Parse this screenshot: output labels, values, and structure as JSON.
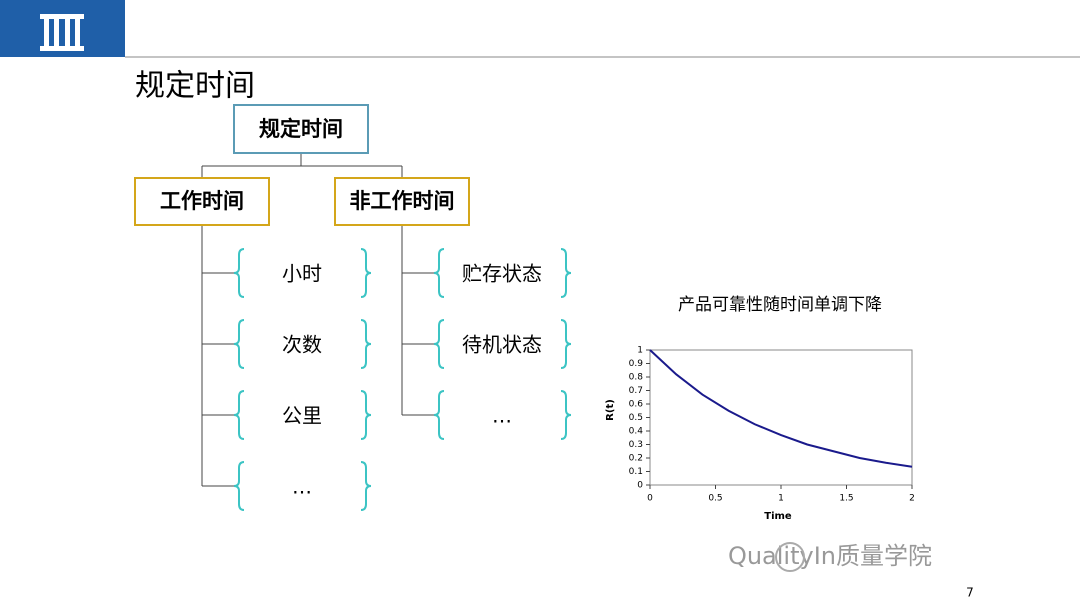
{
  "slide_title": "规定时间",
  "tree": {
    "root": "规定时间",
    "branches": [
      {
        "label": "工作时间",
        "leaves": [
          "小时",
          "次数",
          "公里",
          "…"
        ]
      },
      {
        "label": "非工作时间",
        "leaves": [
          "贮存状态",
          "待机状态",
          "…"
        ]
      }
    ]
  },
  "chart_data": {
    "type": "line",
    "title": "产品可靠性随时间单调下降",
    "x_label": "Time",
    "y_label": "R(t)",
    "x": [
      0,
      0.2,
      0.4,
      0.6,
      0.8,
      1,
      1.2,
      1.4,
      1.6,
      1.8,
      2
    ],
    "values": [
      1,
      0.82,
      0.67,
      0.55,
      0.45,
      0.37,
      0.3,
      0.25,
      0.2,
      0.165,
      0.135
    ],
    "color": "#1a1a8c",
    "xlim": [
      0,
      2
    ],
    "xticks": [
      0,
      0.5,
      1,
      1.5,
      2
    ],
    "ylim": [
      0,
      1
    ],
    "yticks": [
      0,
      0.1,
      0.2,
      0.3,
      0.4,
      0.5,
      0.6,
      0.7,
      0.8,
      0.9,
      1
    ]
  },
  "watermark": "QualityIn质量学院",
  "page_number": "7"
}
